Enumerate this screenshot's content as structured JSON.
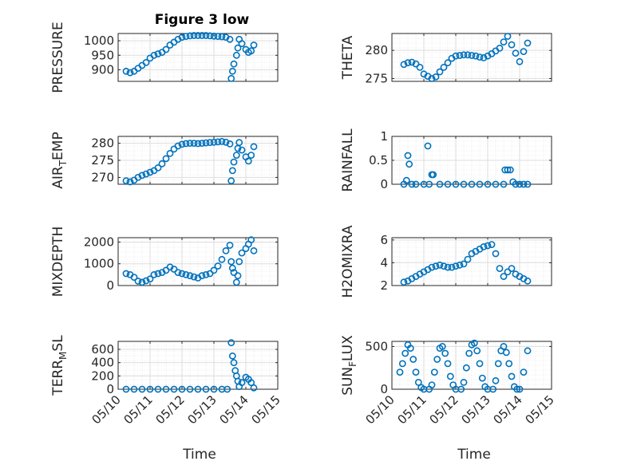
{
  "figure_title": "Figure 3 low",
  "marker_color": "#0072BD",
  "grid": true,
  "date_ticks": [
    "05/10",
    "05/11",
    "05/12",
    "05/13",
    "05/14",
    "05/15"
  ],
  "x_label": "Time",
  "chart_data": [
    {
      "type": "scatter",
      "ylabel": "PRESSURE",
      "ylim": [
        860,
        1025
      ],
      "yticks": [
        900,
        950,
        1000
      ],
      "xlim": [
        "2024-05-10",
        "2024-05-15"
      ],
      "x": [
        "2024-05-10T06:00",
        "2024-05-10T09:00",
        "2024-05-10T12:00",
        "2024-05-10T15:00",
        "2024-05-10T18:00",
        "2024-05-10T21:00",
        "2024-05-11T00:00",
        "2024-05-11T03:00",
        "2024-05-11T06:00",
        "2024-05-11T09:00",
        "2024-05-11T12:00",
        "2024-05-11T15:00",
        "2024-05-11T18:00",
        "2024-05-11T21:00",
        "2024-05-12T00:00",
        "2024-05-12T03:00",
        "2024-05-12T06:00",
        "2024-05-12T09:00",
        "2024-05-12T12:00",
        "2024-05-12T15:00",
        "2024-05-12T18:00",
        "2024-05-12T21:00",
        "2024-05-13T00:00",
        "2024-05-13T03:00",
        "2024-05-13T06:00",
        "2024-05-13T09:00",
        "2024-05-13T12:00",
        "2024-05-13T13:00",
        "2024-05-13T14:00",
        "2024-05-13T15:00",
        "2024-05-13T17:00",
        "2024-05-13T18:00",
        "2024-05-13T19:00",
        "2024-05-13T21:00",
        "2024-05-14T00:00",
        "2024-05-14T02:00",
        "2024-05-14T04:00",
        "2024-05-14T06:00"
      ],
      "y": [
        895,
        890,
        895,
        905,
        915,
        925,
        940,
        950,
        955,
        960,
        970,
        985,
        995,
        1005,
        1012,
        1015,
        1017,
        1018,
        1018,
        1018,
        1018,
        1017,
        1016,
        1015,
        1014,
        1012,
        1005,
        870,
        895,
        920,
        950,
        975,
        1005,
        990,
        970,
        960,
        965,
        985
      ]
    },
    {
      "type": "scatter",
      "ylabel": "THETA",
      "ylim": [
        274.5,
        283
      ],
      "yticks": [
        275,
        280
      ],
      "xlim": [
        "2024-05-10",
        "2024-05-15"
      ],
      "x": [
        "2024-05-10T09:00",
        "2024-05-10T12:00",
        "2024-05-10T15:00",
        "2024-05-10T18:00",
        "2024-05-10T21:00",
        "2024-05-11T00:00",
        "2024-05-11T03:00",
        "2024-05-11T06:00",
        "2024-05-11T09:00",
        "2024-05-11T12:00",
        "2024-05-11T15:00",
        "2024-05-11T18:00",
        "2024-05-11T21:00",
        "2024-05-12T00:00",
        "2024-05-12T03:00",
        "2024-05-12T06:00",
        "2024-05-12T09:00",
        "2024-05-12T12:00",
        "2024-05-12T15:00",
        "2024-05-12T18:00",
        "2024-05-12T21:00",
        "2024-05-13T00:00",
        "2024-05-13T03:00",
        "2024-05-13T06:00",
        "2024-05-13T09:00",
        "2024-05-13T12:00",
        "2024-05-13T15:00",
        "2024-05-13T18:00",
        "2024-05-13T21:00",
        "2024-05-14T00:00",
        "2024-05-14T03:00",
        "2024-05-14T06:00"
      ],
      "y": [
        277.5,
        277.8,
        277.9,
        277.6,
        277,
        275.8,
        275.4,
        275,
        275.3,
        276.2,
        277,
        277.8,
        278.6,
        279,
        279.1,
        279.2,
        279.2,
        279.1,
        279,
        278.8,
        278.7,
        279,
        279.4,
        279.9,
        280.4,
        281.5,
        282.5,
        281,
        279.5,
        278,
        279.8,
        281.3
      ]
    },
    {
      "type": "scatter",
      "ylabel": "AIR_T_EMP",
      "ylim": [
        268,
        282
      ],
      "yticks": [
        270,
        275,
        280
      ],
      "xlim": [
        "2024-05-10",
        "2024-05-15"
      ],
      "x": [
        "2024-05-10T06:00",
        "2024-05-10T09:00",
        "2024-05-10T12:00",
        "2024-05-10T15:00",
        "2024-05-10T18:00",
        "2024-05-10T21:00",
        "2024-05-11T00:00",
        "2024-05-11T03:00",
        "2024-05-11T06:00",
        "2024-05-11T09:00",
        "2024-05-11T12:00",
        "2024-05-11T15:00",
        "2024-05-11T18:00",
        "2024-05-11T21:00",
        "2024-05-12T00:00",
        "2024-05-12T03:00",
        "2024-05-12T06:00",
        "2024-05-12T09:00",
        "2024-05-12T12:00",
        "2024-05-12T15:00",
        "2024-05-12T18:00",
        "2024-05-12T21:00",
        "2024-05-13T00:00",
        "2024-05-13T03:00",
        "2024-05-13T06:00",
        "2024-05-13T09:00",
        "2024-05-13T12:00",
        "2024-05-13T13:00",
        "2024-05-13T14:00",
        "2024-05-13T15:00",
        "2024-05-13T17:00",
        "2024-05-13T18:00",
        "2024-05-13T19:00",
        "2024-05-13T21:00",
        "2024-05-14T00:00",
        "2024-05-14T02:00",
        "2024-05-14T04:00",
        "2024-05-14T06:00"
      ],
      "y": [
        269,
        268.7,
        269.2,
        270,
        270.6,
        271,
        271.5,
        272,
        272.8,
        274,
        275.5,
        277,
        278.3,
        279.2,
        279.7,
        279.9,
        280,
        280,
        279.9,
        280,
        280.1,
        280.2,
        280.3,
        280.4,
        280.5,
        280.3,
        279.8,
        269,
        272,
        274.5,
        276.5,
        278.5,
        280.2,
        278,
        276,
        274.8,
        276.5,
        279
      ]
    },
    {
      "type": "scatter",
      "ylabel": "RAINFALL",
      "ylim": [
        0,
        1
      ],
      "yticks": [
        0,
        0.5,
        1
      ],
      "xlim": [
        "2024-05-10",
        "2024-05-15"
      ],
      "x": [
        "2024-05-10T09:00",
        "2024-05-10T11:00",
        "2024-05-10T12:00",
        "2024-05-10T13:00",
        "2024-05-10T15:00",
        "2024-05-10T18:00",
        "2024-05-11T00:00",
        "2024-05-11T03:00",
        "2024-05-11T04:00",
        "2024-05-11T06:00",
        "2024-05-11T07:00",
        "2024-05-11T12:00",
        "2024-05-11T18:00",
        "2024-05-12T00:00",
        "2024-05-12T06:00",
        "2024-05-12T12:00",
        "2024-05-12T18:00",
        "2024-05-13T00:00",
        "2024-05-13T06:00",
        "2024-05-13T12:00",
        "2024-05-13T13:00",
        "2024-05-13T15:00",
        "2024-05-13T17:00",
        "2024-05-13T19:00",
        "2024-05-13T21:00",
        "2024-05-14T00:00",
        "2024-05-14T03:00",
        "2024-05-14T06:00"
      ],
      "y": [
        0,
        0.08,
        0.6,
        0.42,
        0,
        0,
        0,
        0.8,
        0,
        0.2,
        0.2,
        0,
        0,
        0,
        0,
        0,
        0,
        0,
        0,
        0,
        0.3,
        0.3,
        0.3,
        0.05,
        0,
        0,
        0,
        0
      ]
    },
    {
      "type": "scatter",
      "ylabel": "MIXDEPTH",
      "ylim": [
        0,
        2200
      ],
      "yticks": [
        0,
        1000,
        2000
      ],
      "xlim": [
        "2024-05-10",
        "2024-05-15"
      ],
      "x": [
        "2024-05-10T06:00",
        "2024-05-10T09:00",
        "2024-05-10T12:00",
        "2024-05-10T15:00",
        "2024-05-10T18:00",
        "2024-05-10T21:00",
        "2024-05-11T00:00",
        "2024-05-11T03:00",
        "2024-05-11T06:00",
        "2024-05-11T09:00",
        "2024-05-11T12:00",
        "2024-05-11T15:00",
        "2024-05-11T18:00",
        "2024-05-11T21:00",
        "2024-05-12T00:00",
        "2024-05-12T03:00",
        "2024-05-12T06:00",
        "2024-05-12T09:00",
        "2024-05-12T12:00",
        "2024-05-12T15:00",
        "2024-05-12T18:00",
        "2024-05-12T21:00",
        "2024-05-13T00:00",
        "2024-05-13T03:00",
        "2024-05-13T06:00",
        "2024-05-13T09:00",
        "2024-05-13T12:00",
        "2024-05-13T13:00",
        "2024-05-13T14:00",
        "2024-05-13T15:00",
        "2024-05-13T17:00",
        "2024-05-13T18:00",
        "2024-05-13T19:00",
        "2024-05-13T21:00",
        "2024-05-14T00:00",
        "2024-05-14T02:00",
        "2024-05-14T04:00",
        "2024-05-14T06:00"
      ],
      "y": [
        550,
        500,
        380,
        200,
        150,
        220,
        300,
        500,
        550,
        600,
        700,
        850,
        750,
        600,
        550,
        500,
        450,
        400,
        350,
        450,
        500,
        550,
        700,
        900,
        1200,
        1600,
        1850,
        1100,
        800,
        600,
        150,
        450,
        1100,
        1500,
        1700,
        1900,
        2100,
        1600
      ]
    },
    {
      "type": "scatter",
      "ylabel": "H2OMIXRA",
      "ylim": [
        2,
        6.2
      ],
      "yticks": [
        2,
        4,
        6
      ],
      "xlim": [
        "2024-05-10",
        "2024-05-15"
      ],
      "x": [
        "2024-05-10T09:00",
        "2024-05-10T12:00",
        "2024-05-10T15:00",
        "2024-05-10T18:00",
        "2024-05-10T21:00",
        "2024-05-11T00:00",
        "2024-05-11T03:00",
        "2024-05-11T06:00",
        "2024-05-11T09:00",
        "2024-05-11T12:00",
        "2024-05-11T15:00",
        "2024-05-11T18:00",
        "2024-05-11T21:00",
        "2024-05-12T00:00",
        "2024-05-12T03:00",
        "2024-05-12T06:00",
        "2024-05-12T09:00",
        "2024-05-12T12:00",
        "2024-05-12T15:00",
        "2024-05-12T18:00",
        "2024-05-12T21:00",
        "2024-05-13T00:00",
        "2024-05-13T03:00",
        "2024-05-13T06:00",
        "2024-05-13T09:00",
        "2024-05-13T12:00",
        "2024-05-13T15:00",
        "2024-05-13T18:00",
        "2024-05-13T21:00",
        "2024-05-14T00:00",
        "2024-05-14T03:00",
        "2024-05-14T06:00"
      ],
      "y": [
        2.3,
        2.4,
        2.6,
        2.8,
        3.0,
        3.2,
        3.4,
        3.6,
        3.7,
        3.8,
        3.7,
        3.6,
        3.6,
        3.7,
        3.8,
        3.9,
        4.3,
        4.8,
        5.0,
        5.2,
        5.4,
        5.5,
        5.6,
        4.8,
        3.5,
        2.8,
        3.2,
        3.5,
        3.0,
        2.8,
        2.6,
        2.4
      ]
    },
    {
      "type": "scatter",
      "ylabel": "TERR_M_SL",
      "ylim": [
        0,
        720
      ],
      "yticks": [
        0,
        200,
        400,
        600
      ],
      "xlim": [
        "2024-05-10",
        "2024-05-15"
      ],
      "x": [
        "2024-05-10T06:00",
        "2024-05-10T12:00",
        "2024-05-10T18:00",
        "2024-05-11T00:00",
        "2024-05-11T06:00",
        "2024-05-11T12:00",
        "2024-05-11T18:00",
        "2024-05-12T00:00",
        "2024-05-12T06:00",
        "2024-05-12T12:00",
        "2024-05-12T18:00",
        "2024-05-13T00:00",
        "2024-05-13T06:00",
        "2024-05-13T10:00",
        "2024-05-13T13:00",
        "2024-05-13T14:00",
        "2024-05-13T15:00",
        "2024-05-13T16:00",
        "2024-05-13T17:00",
        "2024-05-13T18:00",
        "2024-05-13T19:00",
        "2024-05-13T21:00",
        "2024-05-14T00:00",
        "2024-05-14T02:00",
        "2024-05-14T04:00",
        "2024-05-14T06:00"
      ],
      "y": [
        0,
        0,
        0,
        0,
        0,
        0,
        0,
        0,
        0,
        0,
        0,
        0,
        0,
        0,
        700,
        500,
        400,
        280,
        200,
        120,
        40,
        100,
        180,
        150,
        100,
        20
      ]
    },
    {
      "type": "scatter",
      "ylabel": "SUN_F_LUX",
      "ylim": [
        0,
        560
      ],
      "yticks": [
        0,
        500
      ],
      "xlim": [
        "2024-05-10",
        "2024-05-15"
      ],
      "x": [
        "2024-05-10T06:00",
        "2024-05-10T08:00",
        "2024-05-10T10:00",
        "2024-05-10T12:00",
        "2024-05-10T14:00",
        "2024-05-10T16:00",
        "2024-05-10T18:00",
        "2024-05-10T20:00",
        "2024-05-10T22:00",
        "2024-05-11T00:00",
        "2024-05-11T04:00",
        "2024-05-11T06:00",
        "2024-05-11T08:00",
        "2024-05-11T10:00",
        "2024-05-11T12:00",
        "2024-05-11T14:00",
        "2024-05-11T16:00",
        "2024-05-11T18:00",
        "2024-05-11T20:00",
        "2024-05-11T22:00",
        "2024-05-12T00:00",
        "2024-05-12T04:00",
        "2024-05-12T06:00",
        "2024-05-12T08:00",
        "2024-05-12T10:00",
        "2024-05-12T12:00",
        "2024-05-12T14:00",
        "2024-05-12T16:00",
        "2024-05-12T18:00",
        "2024-05-12T20:00",
        "2024-05-12T22:00",
        "2024-05-13T00:00",
        "2024-05-13T04:00",
        "2024-05-13T06:00",
        "2024-05-13T08:00",
        "2024-05-13T10:00",
        "2024-05-13T12:00",
        "2024-05-13T14:00",
        "2024-05-13T16:00",
        "2024-05-13T18:00",
        "2024-05-13T20:00",
        "2024-05-13T22:00",
        "2024-05-14T00:00",
        "2024-05-14T03:00",
        "2024-05-14T06:00"
      ],
      "y": [
        200,
        300,
        420,
        520,
        480,
        350,
        200,
        80,
        20,
        0,
        0,
        50,
        200,
        350,
        480,
        500,
        420,
        300,
        150,
        50,
        0,
        0,
        80,
        250,
        420,
        520,
        540,
        450,
        300,
        130,
        30,
        0,
        0,
        100,
        300,
        450,
        500,
        430,
        300,
        150,
        30,
        0,
        0,
        200,
        450
      ]
    }
  ]
}
